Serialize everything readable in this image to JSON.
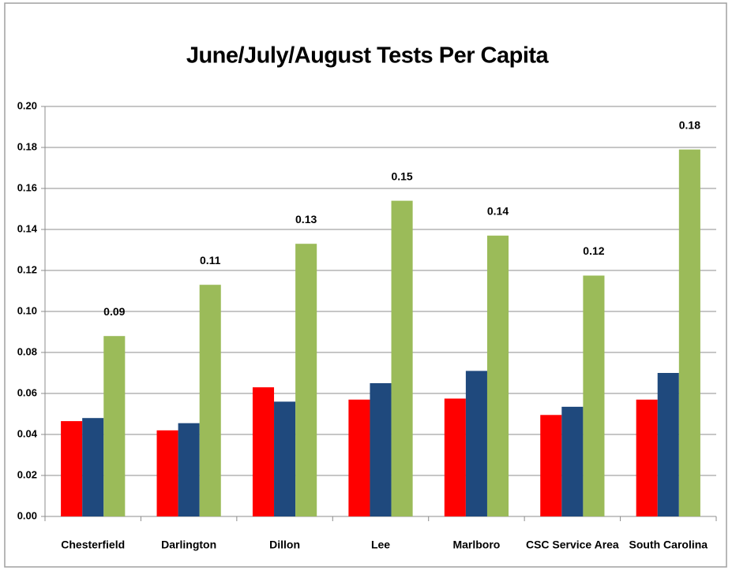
{
  "chart_data": {
    "type": "bar",
    "title": "June/July/August Tests Per Capita",
    "categories": [
      "Chesterfield",
      "Darlington",
      "Dillon",
      "Lee",
      "Marlboro",
      "CSC Service Area",
      "South Carolina"
    ],
    "series": [
      {
        "color": "#ff0000",
        "values": [
          0.0465,
          0.042,
          0.063,
          0.057,
          0.0575,
          0.0495,
          0.057
        ]
      },
      {
        "color": "#1f497d",
        "values": [
          0.048,
          0.0455,
          0.056,
          0.065,
          0.071,
          0.0535,
          0.07
        ]
      },
      {
        "color": "#9bbb59",
        "values": [
          0.088,
          0.113,
          0.133,
          0.154,
          0.137,
          0.1175,
          0.179
        ],
        "value_labels": [
          "0.09",
          "0.11",
          "0.13",
          "0.15",
          "0.14",
          "0.12",
          "0.18"
        ]
      }
    ],
    "ylim": [
      0,
      0.2
    ],
    "yticks": [
      {
        "value": 0,
        "label": "0.00"
      },
      {
        "value": 0.02,
        "label": "0.02"
      },
      {
        "value": 0.04,
        "label": "0.04"
      },
      {
        "value": 0.06,
        "label": "0.06"
      },
      {
        "value": 0.08,
        "label": "0.08"
      },
      {
        "value": 0.1,
        "label": "0.10"
      },
      {
        "value": 0.12,
        "label": "0.12"
      },
      {
        "value": 0.14,
        "label": "0.14"
      },
      {
        "value": 0.16,
        "label": "0.16"
      },
      {
        "value": 0.18,
        "label": "0.18"
      },
      {
        "value": 0.2,
        "label": "0.20"
      }
    ],
    "grid": true
  }
}
